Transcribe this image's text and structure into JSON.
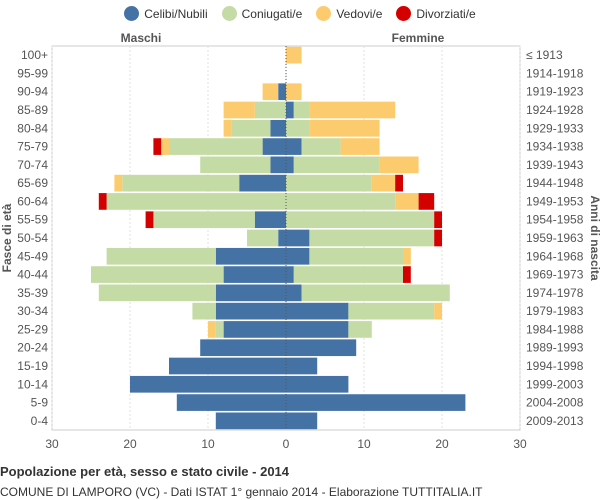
{
  "chart_data": {
    "type": "bar",
    "orientation": "horizontal-population-pyramid",
    "title": "Popolazione per età, sesso e stato civile - 2014",
    "subtitle": "COMUNE DI LAMPORO (VC) - Dati ISTAT 1° gennaio 2014 - Elaborazione TUTTITALIA.IT",
    "left_label": "Maschi",
    "right_label": "Femmine",
    "ylabel_left": "Fasce di età",
    "ylabel_right": "Anni di nascita",
    "xlim": [
      -30,
      30
    ],
    "xticks": [
      -30,
      -20,
      -10,
      0,
      10,
      20,
      30
    ],
    "xtick_labels": [
      "30",
      "20",
      "10",
      "0",
      "10",
      "20",
      "30"
    ],
    "legend": [
      {
        "name": "Celibi/Nubili",
        "color": "#4472a4"
      },
      {
        "name": "Coniugati/e",
        "color": "#c5dba6"
      },
      {
        "name": "Vedovi/e",
        "color": "#fccb6e"
      },
      {
        "name": "Divorziati/e",
        "color": "#d40000"
      }
    ],
    "age_groups": [
      "100+",
      "95-99",
      "90-94",
      "85-89",
      "80-84",
      "75-79",
      "70-74",
      "65-69",
      "60-64",
      "55-59",
      "50-54",
      "45-49",
      "40-44",
      "35-39",
      "30-34",
      "25-29",
      "20-24",
      "15-19",
      "10-14",
      "5-9",
      "0-4"
    ],
    "birth_years": [
      "≤ 1913",
      "1914-1918",
      "1919-1923",
      "1924-1928",
      "1929-1933",
      "1934-1938",
      "1939-1943",
      "1944-1948",
      "1949-1953",
      "1954-1958",
      "1959-1963",
      "1964-1968",
      "1969-1973",
      "1974-1978",
      "1979-1983",
      "1984-1988",
      "1989-1993",
      "1994-1998",
      "1999-2003",
      "2004-2008",
      "2009-2013"
    ],
    "males": {
      "celibi": [
        0,
        0,
        1,
        0,
        2,
        3,
        2,
        6,
        0,
        4,
        1,
        9,
        8,
        9,
        9,
        8,
        11,
        15,
        20,
        14,
        9
      ],
      "coniugati": [
        0,
        0,
        0,
        4,
        5,
        12,
        9,
        15,
        23,
        13,
        4,
        14,
        17,
        15,
        3,
        1,
        0,
        0,
        0,
        0,
        0
      ],
      "vedovi": [
        0,
        0,
        2,
        4,
        1,
        1,
        0,
        1,
        0,
        0,
        0,
        0,
        0,
        0,
        0,
        1,
        0,
        0,
        0,
        0,
        0
      ],
      "divorziati": [
        0,
        0,
        0,
        0,
        0,
        1,
        0,
        0,
        1,
        1,
        0,
        0,
        0,
        0,
        0,
        0,
        0,
        0,
        0,
        0,
        0
      ]
    },
    "females": {
      "nubili": [
        0,
        0,
        0,
        1,
        0,
        2,
        1,
        0,
        0,
        0,
        3,
        3,
        1,
        2,
        8,
        8,
        9,
        4,
        8,
        23,
        4
      ],
      "coniugate": [
        0,
        0,
        0,
        2,
        3,
        5,
        11,
        11,
        14,
        19,
        16,
        12,
        14,
        19,
        11,
        3,
        0,
        0,
        0,
        0,
        0
      ],
      "vedove": [
        2,
        0,
        2,
        11,
        9,
        5,
        5,
        3,
        3,
        0,
        0,
        1,
        0,
        0,
        1,
        0,
        0,
        0,
        0,
        0,
        0
      ],
      "divorziate": [
        0,
        0,
        0,
        0,
        0,
        0,
        0,
        1,
        2,
        1,
        1,
        0,
        1,
        0,
        0,
        0,
        0,
        0,
        0,
        0,
        0
      ]
    }
  }
}
